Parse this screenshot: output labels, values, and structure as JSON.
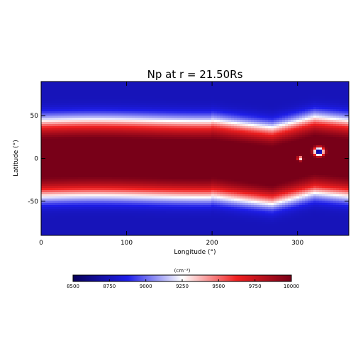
{
  "chart_data": {
    "type": "heatmap",
    "title": "Np at r = 21.50Rs",
    "xlabel": "Longitude (°)",
    "ylabel": "Latitude (°)",
    "xlim": [
      0,
      360
    ],
    "ylim": [
      -90,
      90
    ],
    "x_ticks": [
      0,
      100,
      200,
      300
    ],
    "y_ticks": [
      -50,
      0,
      50
    ],
    "colorbar": {
      "unit_label": "(cm⁻³)",
      "range": [
        8500,
        10000
      ],
      "ticks": [
        8500,
        8750,
        9000,
        9250,
        9500,
        9750,
        10000
      ],
      "colors": [
        "#08005a",
        "#1e1ee8",
        "#ffffff",
        "#f02020",
        "#780018"
      ]
    },
    "field_description": {
      "background_poles": 8750,
      "band_max": 10000,
      "current_sheet_dip_at_longitude": 270,
      "low_density_blob": {
        "lon": 325,
        "lat": 8,
        "value": 8500
      },
      "small_blob": {
        "lon": 303,
        "lat": 0,
        "value": 8800
      }
    }
  }
}
